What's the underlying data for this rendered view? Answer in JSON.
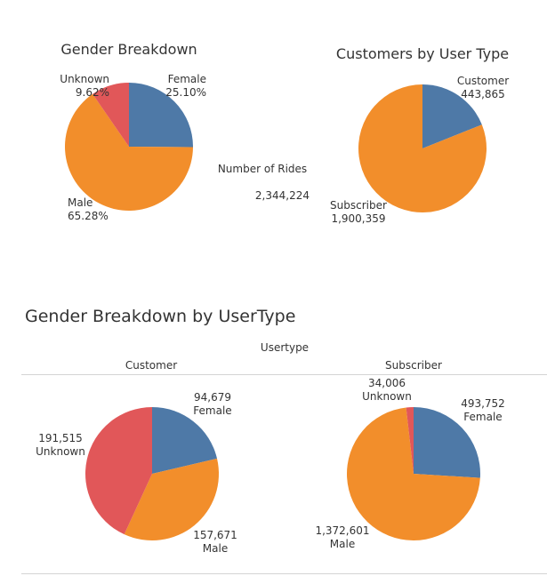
{
  "colors": {
    "female": "#4e79a7",
    "male": "#f28e2b",
    "unknown": "#e15759"
  },
  "texts": {
    "title_gender": "Gender Breakdown",
    "title_usertype": "Customers by User Type",
    "rides_label": "Number of Rides",
    "rides_value": "2,344,224",
    "section_title": "Gender Breakdown  by UserType",
    "usertype_header": "Usertype",
    "col_customer": "Customer",
    "col_subscriber": "Subscriber"
  },
  "chart_data": [
    {
      "type": "pie",
      "title": "Gender Breakdown",
      "slices": [
        {
          "name": "Female",
          "value": 25.1,
          "label": "25.10%",
          "color": "#4e79a7"
        },
        {
          "name": "Male",
          "value": 65.28,
          "label": "65.28%",
          "color": "#f28e2b"
        },
        {
          "name": "Unknown",
          "value": 9.62,
          "label": "9.62%",
          "color": "#e15759"
        }
      ]
    },
    {
      "type": "pie",
      "title": "Customers by User Type",
      "slices": [
        {
          "name": "Customer",
          "value": 443865,
          "label": "443,865",
          "color": "#4e79a7"
        },
        {
          "name": "Subscriber",
          "value": 1900359,
          "label": "1,900,359",
          "color": "#f28e2b"
        }
      ]
    },
    {
      "type": "pie",
      "title": "Customer",
      "slices": [
        {
          "name": "Female",
          "value": 94679,
          "label": "94,679",
          "color": "#4e79a7"
        },
        {
          "name": "Male",
          "value": 157671,
          "label": "157,671",
          "color": "#f28e2b"
        },
        {
          "name": "Unknown",
          "value": 191515,
          "label": "191,515",
          "color": "#e15759"
        }
      ]
    },
    {
      "type": "pie",
      "title": "Subscriber",
      "slices": [
        {
          "name": "Female",
          "value": 493752,
          "label": "493,752",
          "color": "#4e79a7"
        },
        {
          "name": "Male",
          "value": 1372601,
          "label": "1,372,601",
          "color": "#f28e2b"
        },
        {
          "name": "Unknown",
          "value": 34006,
          "label": "34,006",
          "color": "#e15759"
        }
      ]
    }
  ]
}
